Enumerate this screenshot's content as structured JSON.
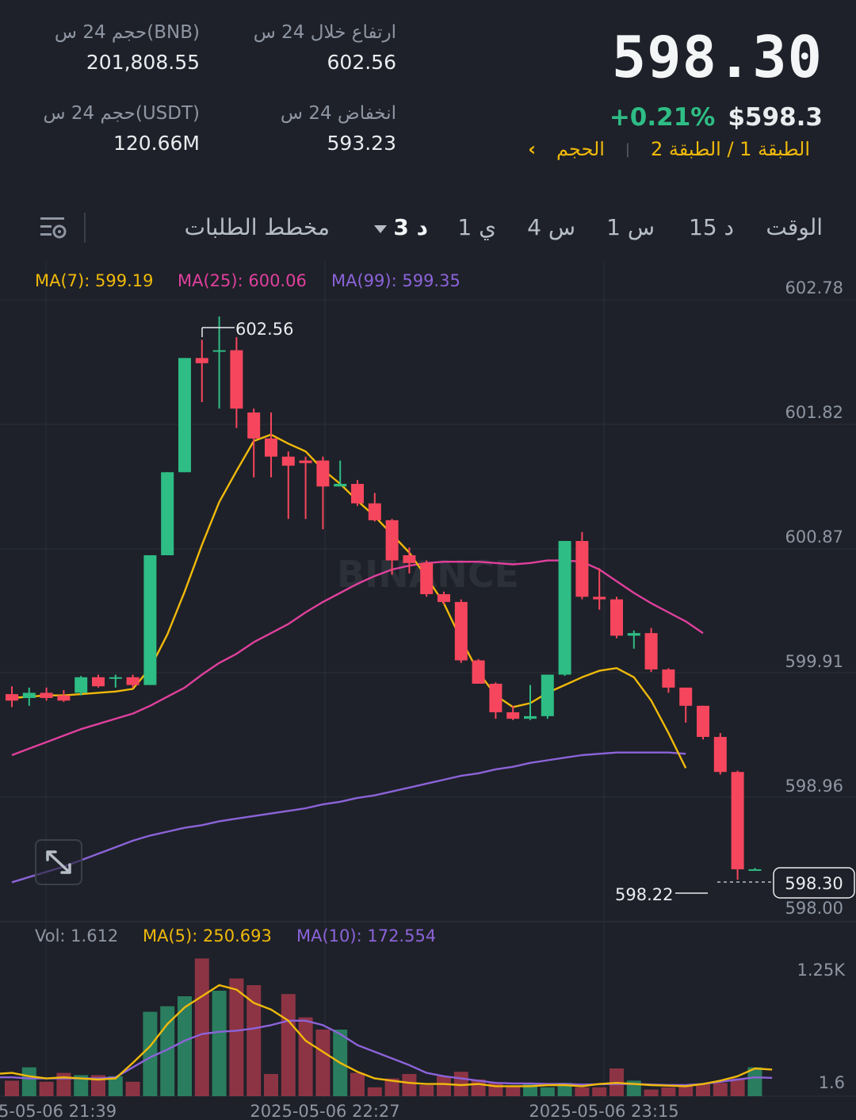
{
  "header": {
    "last_price": "598.30",
    "change_pct": "+0.21%",
    "usd_price": "$598.3",
    "tags": {
      "layer": "الطبقة 1 / الطبقة 2",
      "volume": "الحجم",
      "chevron": "‹"
    },
    "stats": {
      "high_label": "ارتفاع خلال 24 س",
      "high_value": "602.56",
      "low_label": "انخفاض 24 س",
      "low_value": "593.23",
      "vol_bnb_label": "حجم 24 س(BNB)",
      "vol_bnb_value": "201,808.55",
      "vol_usdt_label": "حجم 24 س(USDT)",
      "vol_usdt_value": "120.66M"
    }
  },
  "tabs": {
    "time": "الوقت",
    "m15": "15 د",
    "h1": "1 س",
    "h4": "4 س",
    "d1": "1 ي",
    "m3": "3 د",
    "orderbook": "مخطط الطلبات"
  },
  "chart_data": {
    "type": "candlestick",
    "price_axis_ticks": [
      "602.78",
      "601.82",
      "600.87",
      "599.91",
      "598.96",
      "598.00"
    ],
    "ma_labels": {
      "ma7": "MA(7): 599.19",
      "ma25": "MA(25): 600.06",
      "ma99": "MA(99): 599.35"
    },
    "high_marker": "602.56",
    "low_marker": "598.22",
    "last_price_tag": "598.30",
    "watermark": "BINANCE",
    "volume": {
      "labels": {
        "vol": "Vol: 1.612",
        "ma5": "MA(5): 250.693",
        "ma10": "MA(10): 172.554"
      },
      "axis_ticks": [
        "1.25K",
        "1.6"
      ]
    },
    "time_labels": [
      "5-05-06 21:39",
      "2025-05-06 22:27",
      "2025-05-06 23:15"
    ],
    "colors": {
      "up": "#2ebd85",
      "down": "#f6465d",
      "ma7": "#f0b90b",
      "ma25": "#e0409d",
      "ma99": "#8c63d9"
    },
    "candles": [
      {
        "o": 599.65,
        "h": 599.71,
        "l": 599.55,
        "c": 599.6
      },
      {
        "o": 599.62,
        "h": 599.7,
        "l": 599.56,
        "c": 599.66
      },
      {
        "o": 599.66,
        "h": 599.7,
        "l": 599.6,
        "c": 599.62
      },
      {
        "o": 599.64,
        "h": 599.68,
        "l": 599.59,
        "c": 599.6
      },
      {
        "o": 599.66,
        "h": 599.79,
        "l": 599.64,
        "c": 599.78
      },
      {
        "o": 599.78,
        "h": 599.8,
        "l": 599.7,
        "c": 599.71
      },
      {
        "o": 599.78,
        "h": 599.8,
        "l": 599.7,
        "c": 599.78
      },
      {
        "o": 599.78,
        "h": 599.8,
        "l": 599.7,
        "c": 599.72
      },
      {
        "o": 599.72,
        "h": 600.72,
        "l": 599.72,
        "c": 600.72
      },
      {
        "o": 600.72,
        "h": 601.36,
        "l": 600.72,
        "c": 601.36
      },
      {
        "o": 601.36,
        "h": 602.24,
        "l": 601.36,
        "c": 602.24
      },
      {
        "o": 602.24,
        "h": 602.38,
        "l": 601.9,
        "c": 602.2
      },
      {
        "o": 602.3,
        "h": 602.56,
        "l": 601.85,
        "c": 602.3
      },
      {
        "o": 602.3,
        "h": 602.4,
        "l": 601.7,
        "c": 601.85
      },
      {
        "o": 601.82,
        "h": 601.85,
        "l": 601.32,
        "c": 601.62
      },
      {
        "o": 601.62,
        "h": 601.82,
        "l": 601.32,
        "c": 601.48
      },
      {
        "o": 601.48,
        "h": 601.52,
        "l": 601.0,
        "c": 601.41
      },
      {
        "o": 601.45,
        "h": 601.48,
        "l": 601.0,
        "c": 601.43
      },
      {
        "o": 601.45,
        "h": 601.48,
        "l": 600.92,
        "c": 601.25
      },
      {
        "o": 601.25,
        "h": 601.45,
        "l": 601.25,
        "c": 601.27
      },
      {
        "o": 601.27,
        "h": 601.3,
        "l": 601.1,
        "c": 601.12
      },
      {
        "o": 601.12,
        "h": 601.2,
        "l": 600.98,
        "c": 600.99
      },
      {
        "o": 600.99,
        "h": 601.0,
        "l": 600.57,
        "c": 600.68
      },
      {
        "o": 600.72,
        "h": 600.78,
        "l": 600.58,
        "c": 600.66
      },
      {
        "o": 600.66,
        "h": 600.68,
        "l": 600.4,
        "c": 600.42
      },
      {
        "o": 600.42,
        "h": 600.44,
        "l": 600.34,
        "c": 600.36
      },
      {
        "o": 600.36,
        "h": 600.38,
        "l": 599.89,
        "c": 599.91
      },
      {
        "o": 599.91,
        "h": 599.92,
        "l": 599.73,
        "c": 599.73
      },
      {
        "o": 599.73,
        "h": 599.74,
        "l": 599.46,
        "c": 599.51
      },
      {
        "o": 599.51,
        "h": 599.56,
        "l": 599.45,
        "c": 599.46
      },
      {
        "o": 599.46,
        "h": 599.72,
        "l": 599.45,
        "c": 599.48
      },
      {
        "o": 599.48,
        "h": 599.8,
        "l": 599.46,
        "c": 599.8
      },
      {
        "o": 599.8,
        "h": 600.83,
        "l": 599.79,
        "c": 600.83
      },
      {
        "o": 600.83,
        "h": 600.9,
        "l": 600.38,
        "c": 600.4
      },
      {
        "o": 600.4,
        "h": 600.62,
        "l": 600.3,
        "c": 600.38
      },
      {
        "o": 600.38,
        "h": 600.4,
        "l": 600.08,
        "c": 600.1
      },
      {
        "o": 600.1,
        "h": 600.14,
        "l": 600.0,
        "c": 600.12
      },
      {
        "o": 600.12,
        "h": 600.16,
        "l": 599.82,
        "c": 599.84
      },
      {
        "o": 599.84,
        "h": 599.85,
        "l": 599.66,
        "c": 599.7
      },
      {
        "o": 599.7,
        "h": 599.7,
        "l": 599.43,
        "c": 599.56
      },
      {
        "o": 599.56,
        "h": 599.56,
        "l": 599.3,
        "c": 599.32
      },
      {
        "o": 599.32,
        "h": 599.35,
        "l": 599.03,
        "c": 599.05
      },
      {
        "o": 599.05,
        "h": 599.06,
        "l": 598.22,
        "c": 598.3
      },
      {
        "o": 598.3,
        "h": 598.31,
        "l": 598.29,
        "c": 598.3
      }
    ],
    "ma7": [
      599.62,
      599.63,
      599.64,
      599.64,
      599.65,
      599.66,
      599.67,
      599.69,
      599.85,
      600.11,
      600.44,
      600.8,
      601.13,
      601.37,
      601.6,
      601.65,
      601.58,
      601.52,
      601.38,
      601.27,
      601.14,
      601.02,
      600.88,
      600.74,
      600.55,
      600.35,
      600.07,
      599.82,
      599.64,
      599.55,
      599.58,
      599.66,
      599.72,
      599.78,
      599.83,
      599.85,
      599.78,
      599.6,
      599.35,
      599.08
    ],
    "ma25": [
      599.18,
      599.23,
      599.28,
      599.33,
      599.38,
      599.42,
      599.46,
      599.5,
      599.56,
      599.63,
      599.7,
      599.8,
      599.89,
      599.96,
      600.05,
      600.12,
      600.19,
      600.28,
      600.36,
      600.43,
      600.5,
      600.56,
      600.61,
      600.64,
      600.66,
      600.67,
      600.67,
      600.67,
      600.66,
      600.65,
      600.66,
      600.68,
      600.68,
      600.67,
      600.61,
      600.52,
      600.43,
      600.35,
      600.28,
      600.21,
      600.12
    ],
    "ma99": [
      598.2,
      598.24,
      598.28,
      598.32,
      598.37,
      598.42,
      598.47,
      598.52,
      598.56,
      598.59,
      598.62,
      598.64,
      598.67,
      598.69,
      598.71,
      598.73,
      598.75,
      598.77,
      598.8,
      598.82,
      598.85,
      598.87,
      598.9,
      598.93,
      598.96,
      598.99,
      599.02,
      599.04,
      599.07,
      599.09,
      599.12,
      599.14,
      599.16,
      599.18,
      599.19,
      599.2,
      599.2,
      599.2,
      599.2,
      599.19
    ],
    "volumes": [
      140,
      260,
      130,
      210,
      190,
      190,
      180,
      130,
      760,
      810,
      900,
      1240,
      950,
      1060,
      1000,
      200,
      920,
      710,
      600,
      600,
      210,
      80,
      160,
      200,
      100,
      180,
      220,
      150,
      120,
      90,
      110,
      80,
      120,
      80,
      80,
      250,
      140,
      60,
      80,
      100,
      110,
      120,
      160,
      260
    ],
    "vol_ma5": [
      200,
      210,
      180,
      160,
      170,
      160,
      150,
      160,
      300,
      450,
      650,
      800,
      900,
      1000,
      960,
      840,
      780,
      680,
      500,
      400,
      300,
      220,
      160,
      140,
      120,
      110,
      110,
      100,
      110,
      90,
      90,
      90,
      100,
      100,
      90,
      110,
      120,
      110,
      100,
      95,
      90,
      110,
      140,
      180,
      250,
      240
    ],
    "vol_ma10": [
      170,
      170,
      160,
      160,
      160,
      160,
      160,
      170,
      260,
      350,
      420,
      500,
      560,
      580,
      590,
      610,
      640,
      680,
      680,
      640,
      560,
      460,
      400,
      340,
      280,
      210,
      180,
      160,
      140,
      120,
      115,
      115,
      110,
      110,
      105,
      108,
      110,
      110,
      105,
      100,
      100,
      110,
      130,
      150,
      170,
      165
    ]
  }
}
